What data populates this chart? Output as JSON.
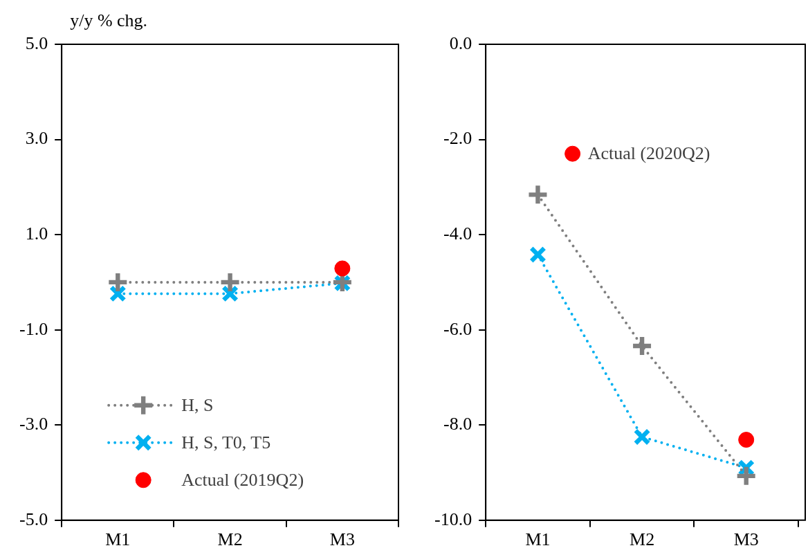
{
  "chart_data": [
    {
      "type": "line",
      "ylabel": "y/y % chg.",
      "categories": [
        "M1",
        "M2",
        "M3"
      ],
      "ylim": [
        -5,
        5
      ],
      "yticks": [
        {
          "value": 5,
          "label": "5.0"
        },
        {
          "value": 3,
          "label": "3.0"
        },
        {
          "value": 1,
          "label": "1.0"
        },
        {
          "value": -1,
          "label": "-1.0"
        },
        {
          "value": -3,
          "label": "-3.0"
        },
        {
          "value": -5,
          "label": "-5.0"
        }
      ],
      "grid": false,
      "legend": "bottom left",
      "line_style": "dotted",
      "series": [
        {
          "name": "H, S",
          "color": "#7f7f7f",
          "marker": "cross",
          "values": [
            0.0,
            0.0,
            0.0
          ]
        },
        {
          "name": "H, S, T0, T5",
          "color": "#00b0f0",
          "marker": "cross",
          "values": [
            -0.24,
            -0.24,
            -0.02
          ]
        },
        {
          "name": "Actual (2019Q2)",
          "type": "scatter",
          "color": "#ff0000",
          "marker": "circle",
          "values": [
            null,
            null,
            0.29
          ]
        }
      ]
    },
    {
      "type": "line",
      "categories": [
        "M1",
        "M2",
        "M3"
      ],
      "ylim": [
        -10,
        0
      ],
      "yticks": [
        {
          "value": 0,
          "label": "0.0"
        },
        {
          "value": -2,
          "label": "-2.0"
        },
        {
          "value": -4,
          "label": "-4.0"
        },
        {
          "value": -6,
          "label": "-6.0"
        },
        {
          "value": -8,
          "label": "-8.0"
        },
        {
          "value": -10,
          "label": "-10.0"
        }
      ],
      "grid": false,
      "legend": "top",
      "line_style": "dotted",
      "series": [
        {
          "color": "#7f7f7f",
          "marker": "cross",
          "values": [
            -3.16,
            -6.34,
            -9.07
          ]
        },
        {
          "color": "#00b0f0",
          "marker": "cross",
          "values": [
            -4.42,
            -8.25,
            -8.9
          ]
        },
        {
          "name": "Actual (2020Q2)",
          "type": "scatter",
          "color": "#ff0000",
          "marker": "circle",
          "values": [
            null,
            null,
            -8.31
          ]
        }
      ]
    }
  ]
}
